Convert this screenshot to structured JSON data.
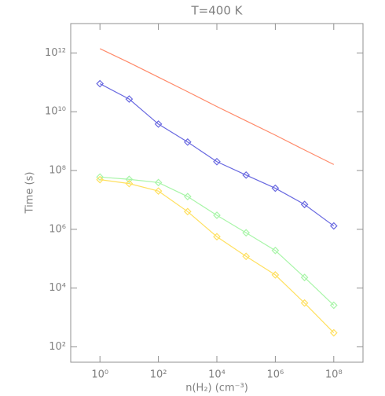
{
  "chart_data": {
    "type": "line",
    "title": "T=400 K",
    "xlabel": "n(H₂) (cm⁻³)",
    "ylabel": "Time (s)",
    "x": [
      1,
      10,
      100,
      1000,
      10000,
      100000,
      1000000,
      10000000,
      100000000
    ],
    "xscale": "log",
    "yscale": "log",
    "xlim": [
      0.1,
      1000000000
    ],
    "ylim": [
      30,
      10000000000000
    ],
    "xticks": [
      {
        "value": 1,
        "label": "10⁰"
      },
      {
        "value": 100,
        "label": "10²"
      },
      {
        "value": 10000,
        "label": "10⁴"
      },
      {
        "value": 1000000,
        "label": "10⁶"
      },
      {
        "value": 100000000,
        "label": "10⁸"
      }
    ],
    "yticks": [
      {
        "value": 100,
        "label": "10²"
      },
      {
        "value": 10000,
        "label": "10⁴"
      },
      {
        "value": 1000000,
        "label": "10⁶"
      },
      {
        "value": 100000000,
        "label": "10⁸"
      },
      {
        "value": 10000000000,
        "label": "10¹⁰"
      },
      {
        "value": 1000000000000,
        "label": "10¹²"
      }
    ],
    "series": [
      {
        "color": "#ff8a6a",
        "marker": "none",
        "values": [
          1400000000000,
          470000000000,
          150000000000,
          48000000000,
          15000000000,
          4900000000,
          1600000000,
          500000000,
          160000000
        ]
      },
      {
        "color": "#6868e0",
        "marker": "diamond",
        "values": [
          90000000000,
          27000000000,
          3800000000,
          930000000,
          200000000,
          70000000,
          25000000,
          7000000,
          1300000
        ]
      },
      {
        "color": "#a8f5a8",
        "marker": "diamond",
        "values": [
          60000000,
          50000000,
          39000000,
          13000000,
          3000000,
          760000,
          190000,
          23000,
          2600
        ]
      },
      {
        "color": "#ffe060",
        "marker": "diamond",
        "values": [
          49000000,
          36000000,
          20000000,
          4000000,
          560000,
          120000,
          28000,
          3100,
          300
        ]
      }
    ]
  }
}
